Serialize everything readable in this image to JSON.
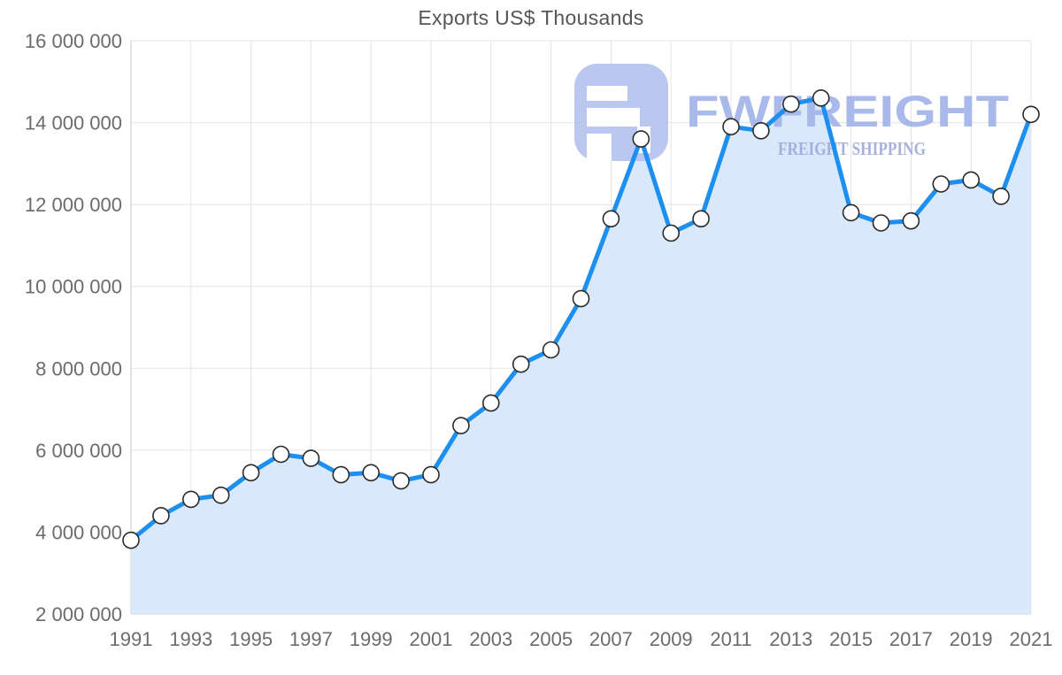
{
  "title": "Exports US$ Thousands",
  "watermark": {
    "brand": "FWFREIGHT",
    "tagline": "FREIGHT SHIPPING",
    "logo_color": "#b5c4ee",
    "brand_color": "#a2b5e9",
    "tagline_color": "#9fabdc"
  },
  "chart_data": {
    "type": "area",
    "title": "Exports US$ Thousands",
    "x": [
      1991,
      1992,
      1993,
      1994,
      1995,
      1996,
      1997,
      1998,
      1999,
      2000,
      2001,
      2002,
      2003,
      2004,
      2005,
      2006,
      2007,
      2008,
      2009,
      2010,
      2011,
      2012,
      2013,
      2014,
      2015,
      2016,
      2017,
      2018,
      2019,
      2020,
      2021
    ],
    "series": [
      {
        "name": "Exports US$ Thousands",
        "values": [
          3800000,
          4400000,
          4800000,
          4900000,
          5450000,
          5900000,
          5800000,
          5400000,
          5450000,
          5250000,
          5400000,
          6600000,
          7150000,
          8100000,
          8450000,
          9700000,
          11650000,
          13600000,
          11300000,
          11650000,
          13900000,
          13800000,
          14450000,
          14600000,
          11800000,
          11550000,
          11600000,
          12500000,
          12600000,
          12200000,
          14200000
        ]
      }
    ],
    "xlabel": "",
    "ylabel": "",
    "ylim": [
      2000000,
      16000000
    ],
    "yticks": [
      2000000,
      4000000,
      6000000,
      8000000,
      10000000,
      12000000,
      14000000,
      16000000
    ],
    "ytick_labels": [
      "2 000 000",
      "4 000 000",
      "6 000 000",
      "8 000 000",
      "10 000 000",
      "12 000 000",
      "14 000 000",
      "16 000 000"
    ],
    "xtick_years": [
      1991,
      1993,
      1995,
      1997,
      1999,
      2001,
      2003,
      2005,
      2007,
      2009,
      2011,
      2013,
      2015,
      2017,
      2019,
      2021
    ],
    "grid": true,
    "legend_position": "none",
    "marker": "circle",
    "colors": {
      "line": "#1d8ff0",
      "fill": "#d9e9fb",
      "marker_fill": "#ffffff",
      "marker_stroke": "#2a2a2a",
      "grid": "#e4e4e4",
      "axis_border": "#c9c9c9",
      "tick_text": "#6b6b6b",
      "title_text": "#565656"
    }
  }
}
